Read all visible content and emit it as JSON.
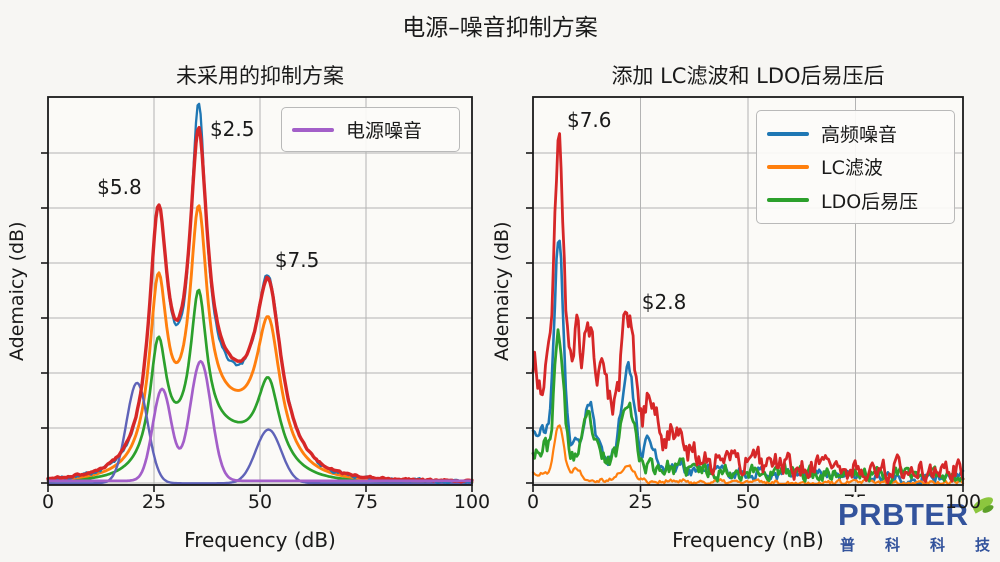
{
  "figure": {
    "title": "电源–噪音抑制方案"
  },
  "watermark": {
    "brand": "PRBTER",
    "sub": "普科科技",
    "brand_color": "#33539c"
  },
  "chart_data": [
    {
      "type": "line",
      "title": "未采用的抑制方案",
      "xlabel": "Frequency (dB)",
      "ylabel": "Ademaicy (dB)",
      "xlim": [
        0,
        100
      ],
      "ylim": [
        0,
        1.12
      ],
      "xticks": [
        "0",
        "25",
        "50",
        "75",
        "100"
      ],
      "grid": true,
      "legend_position": "upper right",
      "legend": [
        {
          "label": "电源噪音",
          "color": "#a35fc9"
        }
      ],
      "annotations": [
        {
          "text": "$5.8",
          "x": 11.6,
          "y": 0.83
        },
        {
          "text": "$2.5",
          "x": 38.2,
          "y": 1.0
        },
        {
          "text": "$7.5",
          "x": 53.5,
          "y": 0.62
        }
      ],
      "series": [
        {
          "name": "green-sum",
          "color": "#2ca02c",
          "width": 2.7,
          "seed": 11,
          "base": 0.006,
          "lor": [
            [
              26,
              0.35,
              2.4
            ],
            [
              35.5,
              0.42,
              2.3
            ],
            [
              52,
              0.235,
              3.2
            ]
          ],
          "gau": [
            [
              40,
              0.12,
              10
            ]
          ]
        },
        {
          "name": "orange-sum",
          "color": "#ff7f0e",
          "width": 2.9,
          "seed": 12,
          "base": 0.006,
          "lor": [
            [
              26,
              0.5,
              2.5
            ],
            [
              35.5,
              0.6,
              2.4
            ],
            [
              52,
              0.38,
              3.4
            ]
          ],
          "gau": [
            [
              40,
              0.17,
              10
            ]
          ]
        },
        {
          "name": "slate-component",
          "color": "#5f63b8",
          "width": 2.4,
          "seed": 13,
          "base": 0.005,
          "gau": [
            [
              21,
              0.29,
              2.5
            ],
            [
              52,
              0.155,
              3.0
            ]
          ]
        },
        {
          "name": "blue-total",
          "color": "#1f77b4",
          "width": 2.3,
          "seed": 14,
          "base": 0.005,
          "lor": [
            [
              26,
              0.675,
              2.6
            ],
            [
              35.5,
              0.84,
              2.2
            ],
            [
              52,
              0.475,
              3.6
            ]
          ],
          "gau": [
            [
              40,
              0.215,
              10
            ]
          ],
          "noise": {
            "b": 0.0035
          }
        },
        {
          "name": "red-total",
          "color": "#d62728",
          "width": 3.4,
          "seed": 15,
          "base": 0.007,
          "lor": [
            [
              26,
              0.66,
              2.6
            ],
            [
              35.5,
              0.76,
              2.5
            ],
            [
              52,
              0.46,
              3.6
            ]
          ],
          "gau": [
            [
              40,
              0.22,
              10
            ]
          ],
          "noise": {
            "b": 0.002
          }
        },
        {
          "name": "power-noise",
          "color": "#a35fc9",
          "width": 2.7,
          "seed": 16,
          "base": 0.012,
          "gau": [
            [
              26.9,
              0.265,
              2.2
            ],
            [
              36,
              0.345,
              2.5
            ]
          ]
        }
      ]
    },
    {
      "type": "line",
      "title": "添加 LC滤波和 LDO后易压后",
      "xlabel": "Frequency (nB)",
      "ylabel": "Ademaicy (dB)",
      "xlim": [
        0,
        100
      ],
      "ylim": [
        0,
        1.12
      ],
      "xticks": [
        "0",
        "25",
        "50",
        "75",
        "100"
      ],
      "grid": true,
      "legend_position": "upper right",
      "legend": [
        {
          "label": "高频噪音",
          "color": "#1f77b4"
        },
        {
          "label": "LC滤波",
          "color": "#ff7f0e"
        },
        {
          "label": "LDO后易压",
          "color": "#2ca02c"
        }
      ],
      "annotations": [
        {
          "text": "$7.6",
          "x": 7.9,
          "y": 1.025
        },
        {
          "text": "$2.8",
          "x": 25.3,
          "y": 0.5
        }
      ],
      "series": [
        {
          "name": "blue-hf-noise",
          "color": "#1f77b4",
          "width": 2.6,
          "seed": 21,
          "base": 0.0,
          "gau": [
            [
              6,
              0.59,
              1.05
            ],
            [
              13,
              0.14,
              1.1
            ],
            [
              22,
              0.28,
              1.4
            ],
            [
              27,
              0.07,
              1.2
            ]
          ],
          "tail": {
            "a": 0.14,
            "k": 22,
            "b": 0.02
          },
          "noise": {
            "a": 0.01,
            "k": 60,
            "b": 0.009
          }
        },
        {
          "name": "orange-lc-filter",
          "color": "#ff7f0e",
          "width": 2.2,
          "seed": 22,
          "base": 0.0,
          "gau": [
            [
              6,
              0.15,
              1.1
            ],
            [
              10,
              0.03,
              1.0
            ],
            [
              22,
              0.04,
              1.6
            ]
          ],
          "tail": {
            "a": 0.028,
            "k": 15,
            "b": 0.007
          },
          "noise": {
            "b": 0.005
          }
        },
        {
          "name": "green-ldo",
          "color": "#2ca02c",
          "width": 2.8,
          "seed": 23,
          "base": 0.0,
          "gau": [
            [
              6,
              0.34,
              1.0
            ],
            [
              13,
              0.11,
              1.1
            ],
            [
              22,
              0.2,
              1.4
            ]
          ],
          "tail": {
            "a": 0.085,
            "k": 22,
            "b": 0.03
          },
          "noise": {
            "a": 0.012,
            "k": 60,
            "b": 0.011
          }
        },
        {
          "name": "red-raw",
          "color": "#d62728",
          "width": 2.8,
          "seed": 24,
          "base": 0.0,
          "gau": [
            [
              6,
              0.7,
              1.15
            ],
            [
              10,
              0.22,
              0.9
            ],
            [
              13,
              0.28,
              1.1
            ],
            [
              16.5,
              0.17,
              1.1
            ],
            [
              22,
              0.36,
              1.5
            ],
            [
              27.5,
              0.15,
              1.3
            ],
            [
              33,
              0.08,
              1.8
            ]
          ],
          "tail": {
            "a": 0.3,
            "k": 18,
            "b": 0.045
          },
          "noise": {
            "a": 0.03,
            "k": 45,
            "b": 0.017
          }
        }
      ]
    }
  ]
}
